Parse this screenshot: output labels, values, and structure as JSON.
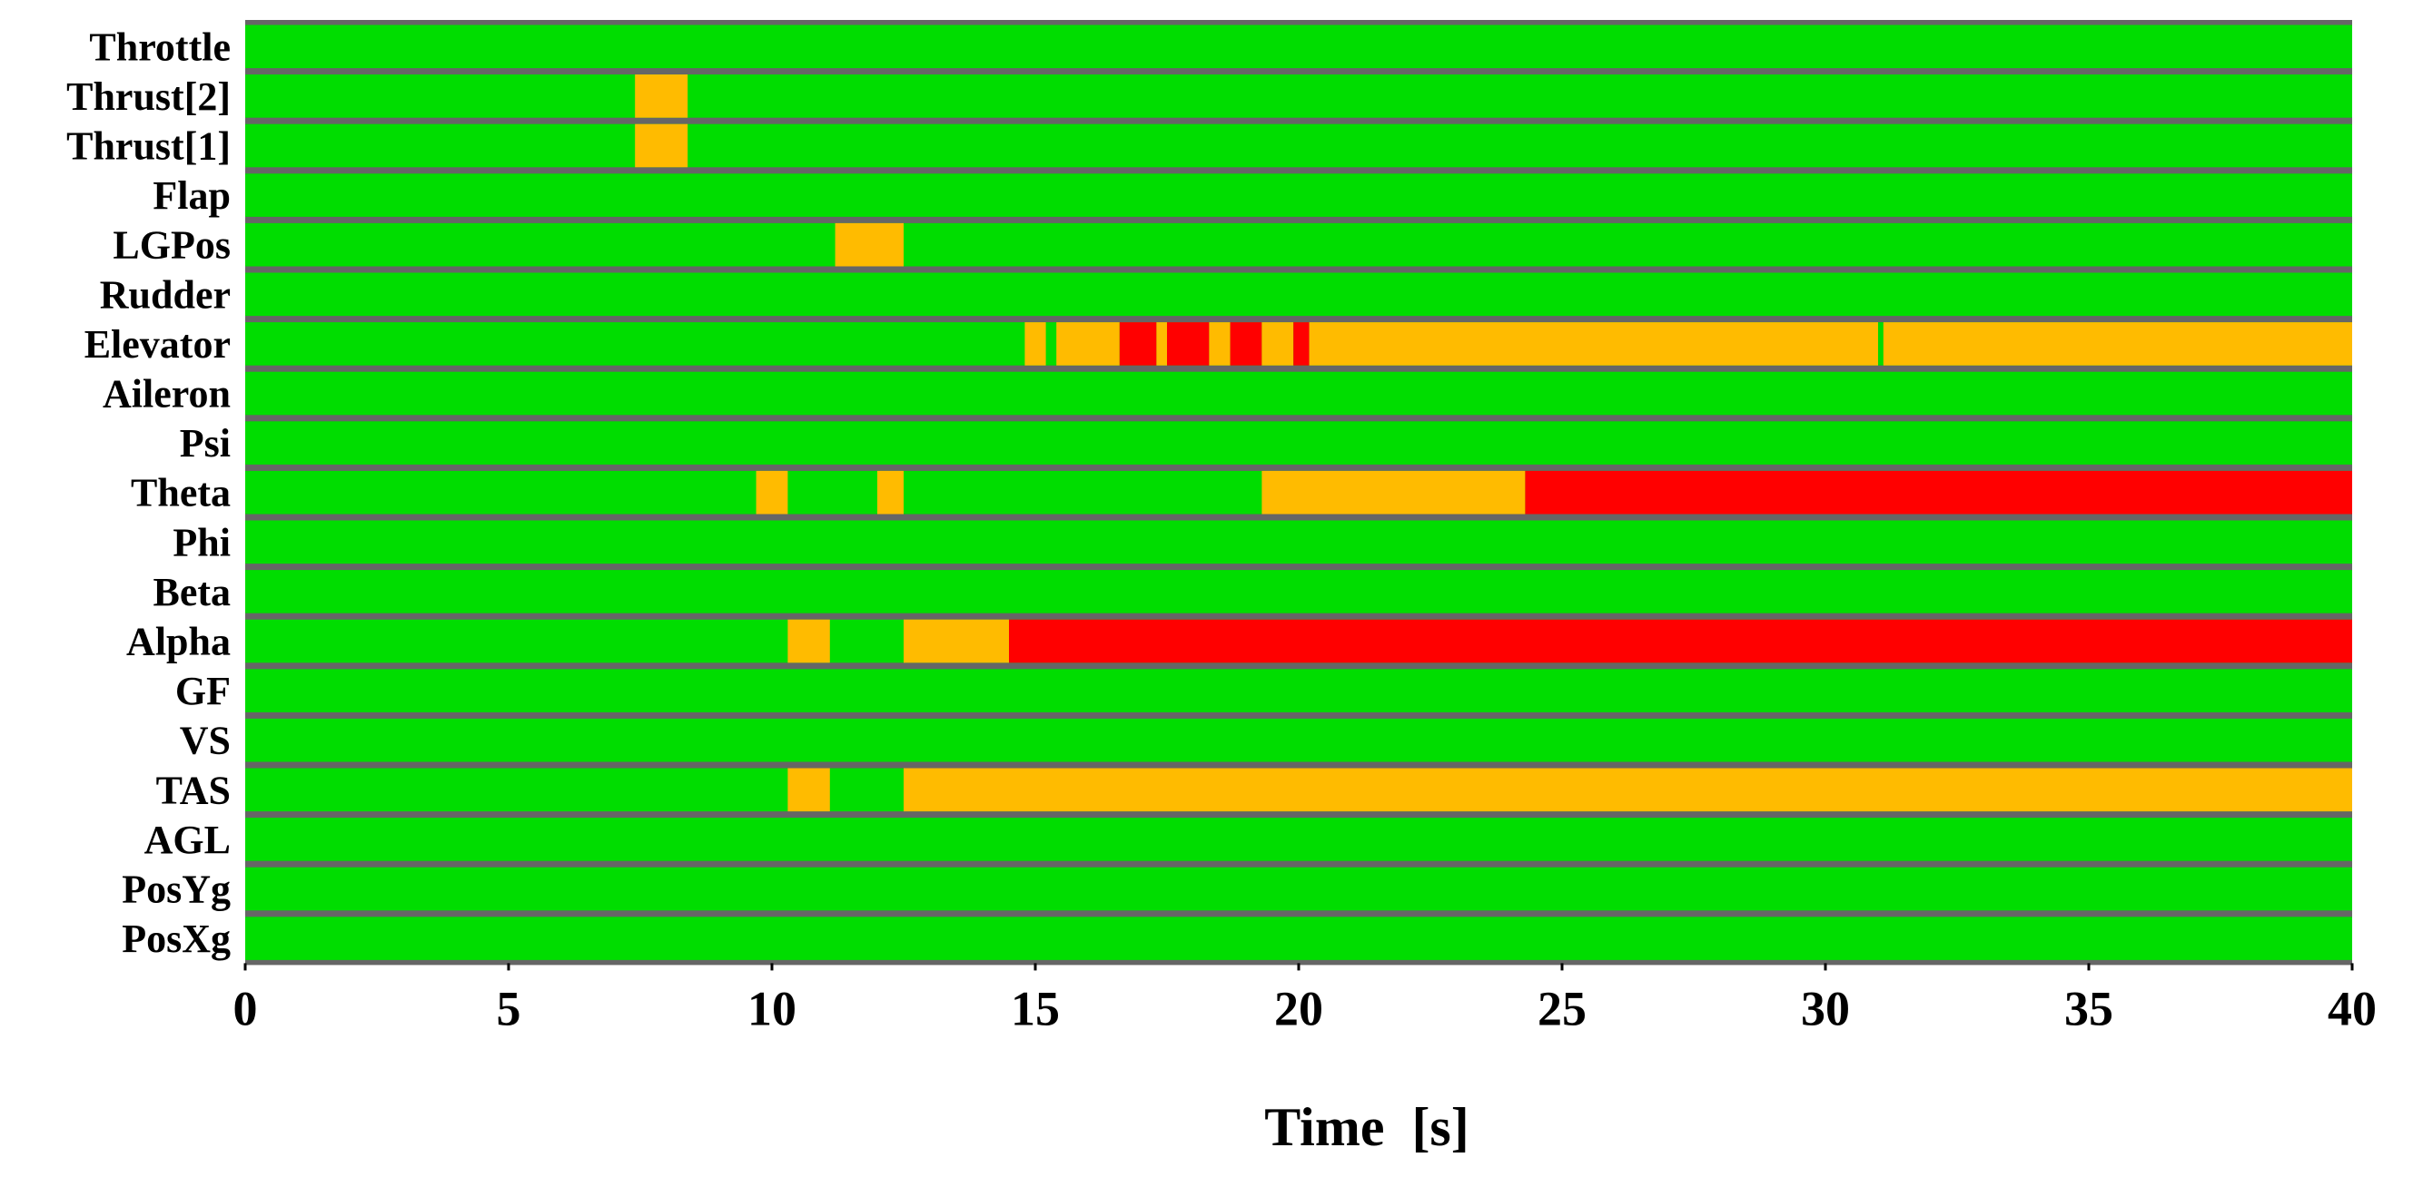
{
  "chart_data": {
    "type": "timeline",
    "title": "",
    "xlabel": "Time  [s]",
    "ylabel": "",
    "xlim": [
      0,
      40
    ],
    "xticks": [
      0,
      5,
      10,
      15,
      20,
      25,
      30,
      35,
      40
    ],
    "xtick_labels": [
      "0",
      "5",
      "10",
      "15",
      "20",
      "25",
      "30",
      "35",
      "40"
    ],
    "colors": {
      "normal": "#00dd00",
      "caution": "#ffbb00",
      "warning": "#ff0000",
      "separator": "#666666"
    },
    "rows": [
      {
        "label": "Throttle",
        "segments": []
      },
      {
        "label": "Thrust[2]",
        "segments": [
          {
            "start": 7.4,
            "end": 8.4,
            "state": "caution"
          }
        ]
      },
      {
        "label": "Thrust[1]",
        "segments": [
          {
            "start": 7.4,
            "end": 8.4,
            "state": "caution"
          }
        ]
      },
      {
        "label": "Flap",
        "segments": []
      },
      {
        "label": "LGPos",
        "segments": [
          {
            "start": 11.2,
            "end": 12.5,
            "state": "caution"
          }
        ]
      },
      {
        "label": "Rudder",
        "segments": []
      },
      {
        "label": "Elevator",
        "segments": [
          {
            "start": 14.8,
            "end": 15.2,
            "state": "caution"
          },
          {
            "start": 15.4,
            "end": 16.6,
            "state": "caution"
          },
          {
            "start": 16.6,
            "end": 17.3,
            "state": "warning"
          },
          {
            "start": 17.3,
            "end": 17.5,
            "state": "caution"
          },
          {
            "start": 17.5,
            "end": 18.3,
            "state": "warning"
          },
          {
            "start": 18.3,
            "end": 18.7,
            "state": "caution"
          },
          {
            "start": 18.7,
            "end": 19.3,
            "state": "warning"
          },
          {
            "start": 19.3,
            "end": 19.9,
            "state": "caution"
          },
          {
            "start": 19.9,
            "end": 20.2,
            "state": "warning"
          },
          {
            "start": 20.2,
            "end": 31.0,
            "state": "caution"
          },
          {
            "start": 31.1,
            "end": 40.0,
            "state": "caution"
          }
        ]
      },
      {
        "label": "Aileron",
        "segments": []
      },
      {
        "label": "Psi",
        "segments": []
      },
      {
        "label": "Theta",
        "segments": [
          {
            "start": 9.7,
            "end": 10.3,
            "state": "caution"
          },
          {
            "start": 12.0,
            "end": 12.5,
            "state": "caution"
          },
          {
            "start": 19.3,
            "end": 24.3,
            "state": "caution"
          },
          {
            "start": 24.3,
            "end": 40.0,
            "state": "warning"
          }
        ]
      },
      {
        "label": "Phi",
        "segments": []
      },
      {
        "label": "Beta",
        "segments": []
      },
      {
        "label": "Alpha",
        "segments": [
          {
            "start": 10.3,
            "end": 11.1,
            "state": "caution"
          },
          {
            "start": 12.5,
            "end": 14.5,
            "state": "caution"
          },
          {
            "start": 14.5,
            "end": 40.0,
            "state": "warning"
          }
        ]
      },
      {
        "label": "GF",
        "segments": []
      },
      {
        "label": "VS",
        "segments": []
      },
      {
        "label": "TAS",
        "segments": [
          {
            "start": 10.3,
            "end": 11.1,
            "state": "caution"
          },
          {
            "start": 12.5,
            "end": 40.0,
            "state": "caution"
          }
        ]
      },
      {
        "label": "AGL",
        "segments": []
      },
      {
        "label": "PosYg",
        "segments": []
      },
      {
        "label": "PosXg",
        "segments": []
      }
    ]
  }
}
